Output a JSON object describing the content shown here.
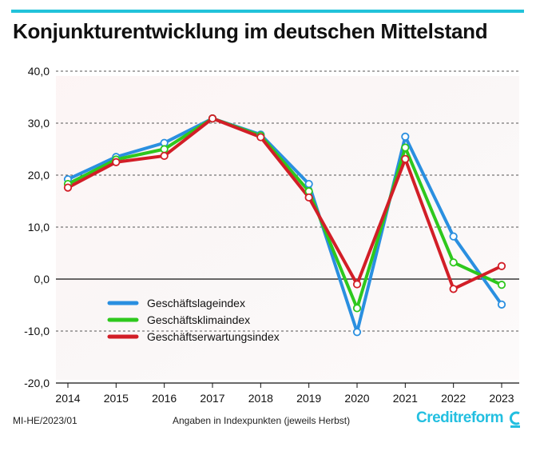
{
  "colors": {
    "accent": "#22c3da",
    "blue": "#2a8fe0",
    "green": "#2ec81d",
    "red": "#d21e27",
    "brand": "#23bfe0"
  },
  "footer": {
    "code": "MI-HE/2023/01",
    "note": "Angaben in Indexpunkten (jeweils Herbst)",
    "brand": "Creditreform"
  },
  "chart_data": {
    "type": "line",
    "title": "Konjunkturentwicklung im deutschen Mittelstand",
    "x": [
      "2014",
      "2015",
      "2016",
      "2017",
      "2018",
      "2019",
      "2020",
      "2021",
      "2022",
      "2023"
    ],
    "ylim": [
      -20,
      40
    ],
    "yticks": [
      "-20,0",
      "-10,0",
      "0,0",
      "10,0",
      "20,0",
      "30,0",
      "40,0"
    ],
    "ytick_values": [
      -20,
      -10,
      0,
      10,
      20,
      30,
      40
    ],
    "grid": true,
    "legend": "lower-left",
    "series": [
      {
        "name": "Geschäftslageindex",
        "color": "#2a8fe0",
        "values": [
          19.2,
          23.5,
          26.2,
          30.9,
          27.8,
          18.3,
          -10.2,
          27.4,
          8.2,
          -4.9
        ]
      },
      {
        "name": "Geschäftsklimaindex",
        "color": "#2ec81d",
        "values": [
          18.3,
          23.0,
          25.0,
          30.9,
          27.6,
          16.9,
          -5.6,
          25.3,
          3.2,
          -1.1
        ]
      },
      {
        "name": "Geschäftserwartungsindex",
        "color": "#d21e27",
        "values": [
          17.6,
          22.5,
          23.7,
          30.9,
          27.3,
          15.7,
          -1.0,
          23.1,
          -1.9,
          2.5
        ]
      }
    ]
  }
}
